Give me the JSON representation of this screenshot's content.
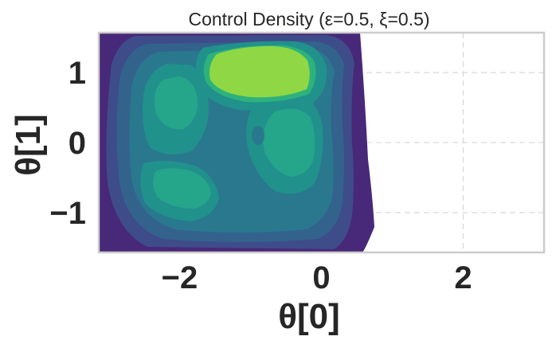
{
  "chart_data": {
    "type": "contour",
    "title": "Control Density (ε=0.5, ξ=0.5)",
    "xlabel": "θ[0]",
    "ylabel": "θ[1]",
    "xlim": [
      -3.14,
      3.14
    ],
    "ylim": [
      -1.57,
      1.57
    ],
    "x_ticks": [
      {
        "value": -2,
        "label": "−2"
      },
      {
        "value": 0,
        "label": "0"
      },
      {
        "value": 2,
        "label": "2"
      }
    ],
    "y_ticks": [
      {
        "value": 1,
        "label": "1"
      },
      {
        "value": 0,
        "label": "0"
      },
      {
        "value": -1,
        "label": "−1"
      }
    ],
    "grid": true,
    "grid_style": "dashed",
    "colormap": "viridis",
    "level_colors": [
      "#482878",
      "#3e4c8a",
      "#33638d",
      "#2a788e",
      "#21918c",
      "#25a58a",
      "#2db27d",
      "#8fd744"
    ],
    "density_modes": [
      {
        "x": -1.05,
        "y": 1.05,
        "level": "peak"
      },
      {
        "x": -2.0,
        "y": -0.5,
        "level": "high"
      },
      {
        "x": -0.2,
        "y": 0.3,
        "level": "high"
      },
      {
        "x": -0.9,
        "y": 0.1,
        "level": "local minimum"
      }
    ]
  }
}
